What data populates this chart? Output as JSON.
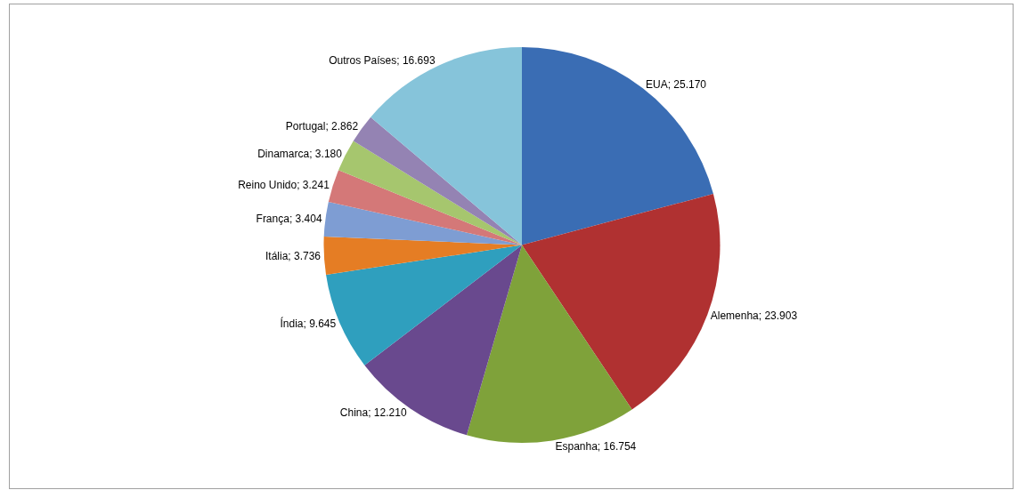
{
  "chart_data": {
    "type": "pie",
    "categories": [
      "EUA",
      "Alemenha",
      "Espanha",
      "China",
      "Índia",
      "Itália",
      "França",
      "Reino Unido",
      "Dinamarca",
      "Portugal",
      "Outros Países"
    ],
    "values": [
      25170,
      23903,
      16754,
      12210,
      9645,
      3736,
      3404,
      3241,
      3180,
      2862,
      16693
    ],
    "value_labels": [
      "25.170",
      "23.903",
      "16.754",
      "12.210",
      "9.645",
      "3.736",
      "3.404",
      "3.241",
      "3.180",
      "2.862",
      "16.693"
    ],
    "colors": [
      "#3a6db4",
      "#b03131",
      "#7fa23a",
      "#69498e",
      "#2f9fbe",
      "#e57d24",
      "#7e9dd3",
      "#d47878",
      "#a6c66e",
      "#9483b3",
      "#86c4da"
    ],
    "legend": false
  }
}
